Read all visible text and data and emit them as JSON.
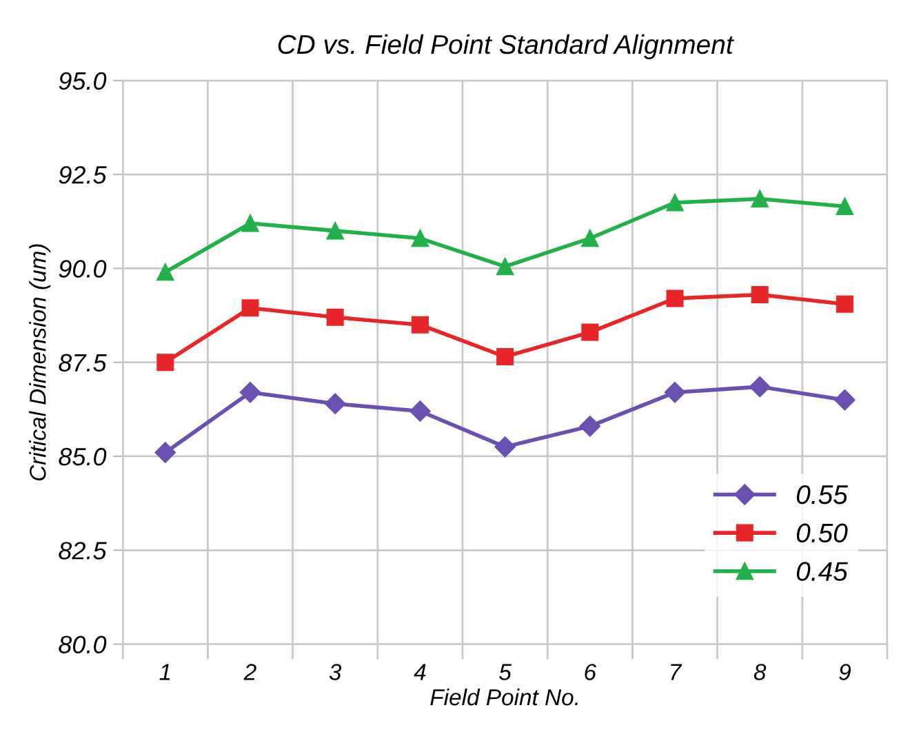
{
  "chart_data": {
    "type": "line",
    "title": "CD vs. Field Point Standard Alignment",
    "xlabel": "Field Point No.",
    "ylabel": "Critical Dimension (um)",
    "categories": [
      "1",
      "2",
      "3",
      "4",
      "5",
      "6",
      "7",
      "8",
      "9"
    ],
    "series": [
      {
        "name": "0.55",
        "color": "#6a50b0",
        "marker": "diamond",
        "values": [
          85.1,
          86.7,
          86.4,
          86.2,
          85.25,
          85.8,
          86.7,
          86.85,
          86.5
        ]
      },
      {
        "name": "0.50",
        "color": "#e8262a",
        "marker": "square",
        "values": [
          87.5,
          88.95,
          88.7,
          88.5,
          87.65,
          88.3,
          89.2,
          89.3,
          89.05
        ]
      },
      {
        "name": "0.45",
        "color": "#22b04a",
        "marker": "triangle",
        "values": [
          89.9,
          91.2,
          91.0,
          90.8,
          90.05,
          90.8,
          91.75,
          91.85,
          91.65
        ]
      }
    ],
    "ylim": [
      80.0,
      95.0
    ],
    "yticks": [
      {
        "value": 80,
        "label": "80.0"
      },
      {
        "value": 82.5,
        "label": "82.5"
      },
      {
        "value": 85,
        "label": "85.0"
      },
      {
        "value": 87.5,
        "label": "87.5"
      },
      {
        "value": 90,
        "label": "90.0"
      },
      {
        "value": 92.5,
        "label": "92.5"
      },
      {
        "value": 95,
        "label": "95.0"
      }
    ],
    "grid": true,
    "legend": "bottom right",
    "line_style": "solid"
  }
}
